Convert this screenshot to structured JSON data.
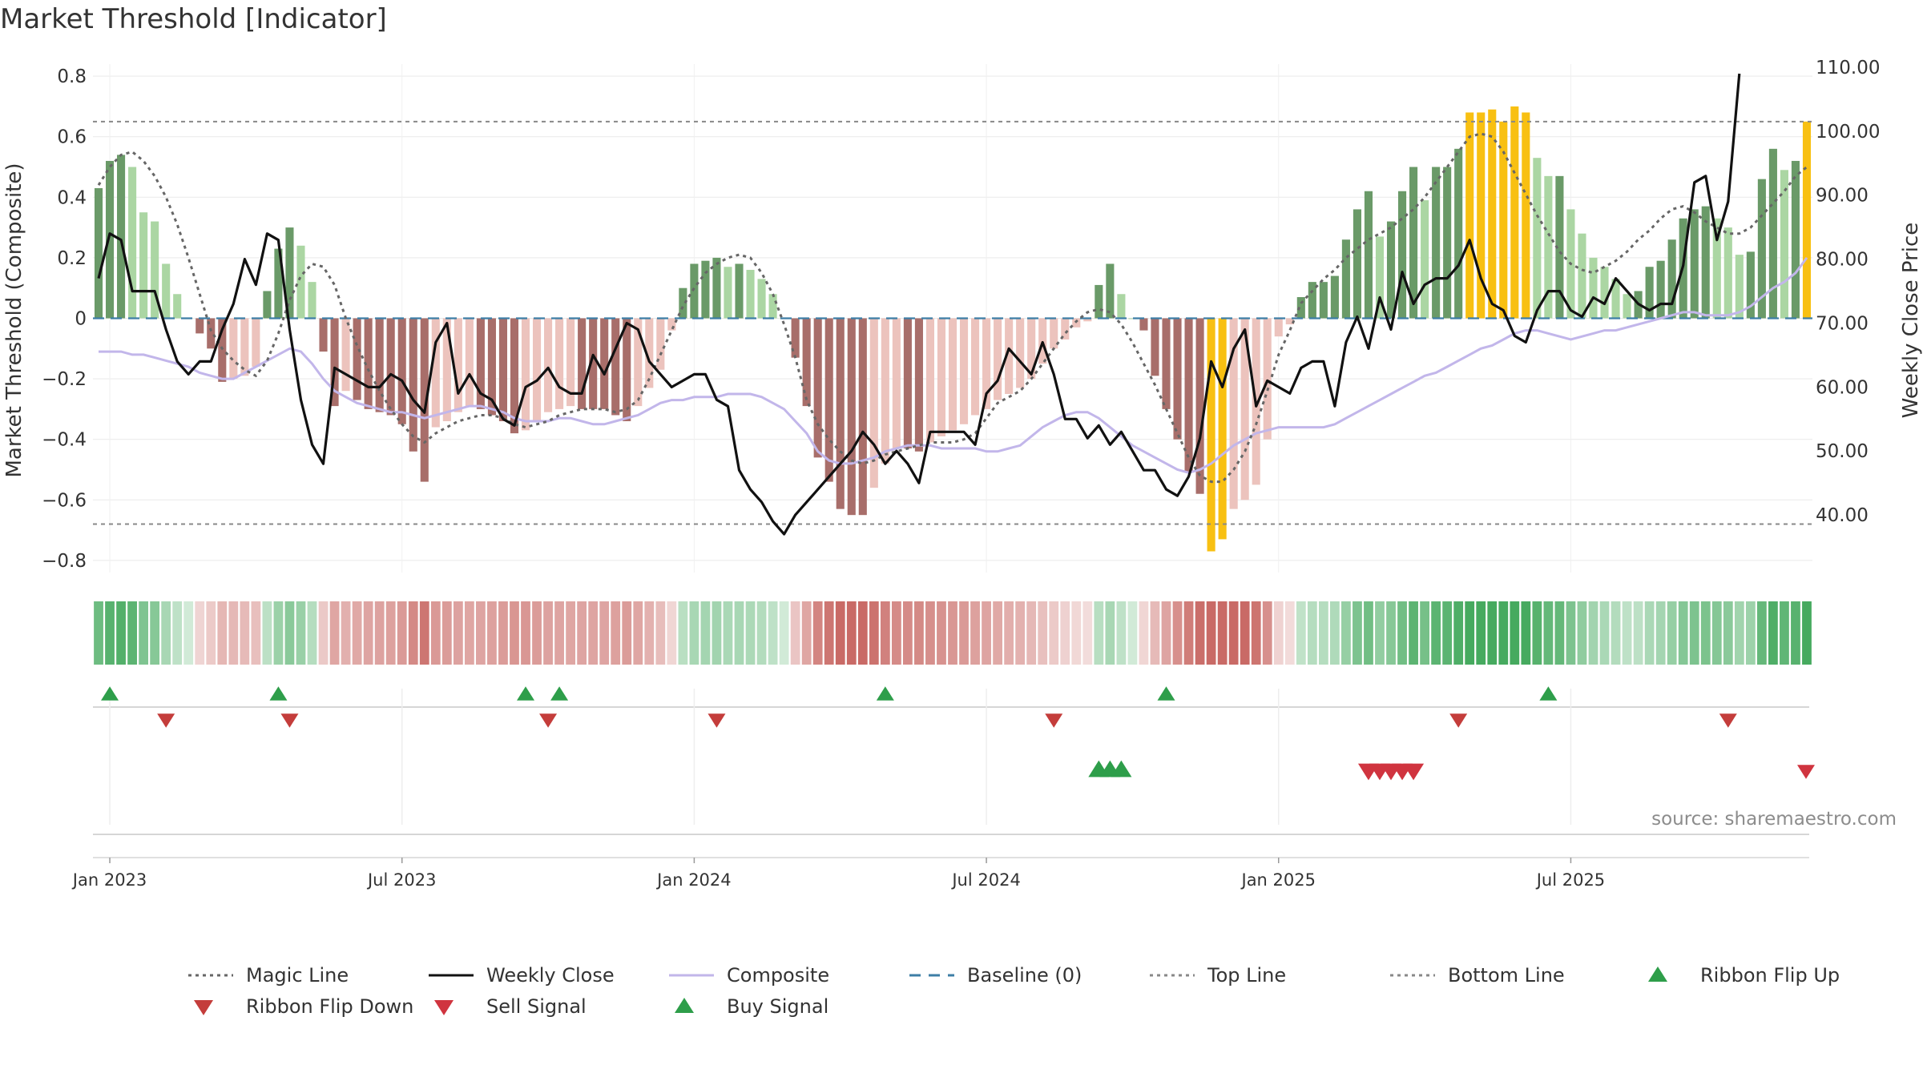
{
  "header": {
    "title": "Market Threshold [Indicator]"
  },
  "source": "source: sharemaestro.com",
  "colors": {
    "magic": "#666666",
    "close": "#111111",
    "composite": "#c2b6ea",
    "baseline": "#3d7ea6",
    "topline": "#888888",
    "bottomline": "#888888",
    "buy": "#2e9e4a",
    "sell": "#d0343f",
    "flipdown": "#c43d3b"
  },
  "chart_data": {
    "type": "bar",
    "title": "Market Threshold [Indicator]",
    "ylabel": "Market Threshold (Composite)",
    "ylabel_right": "Weekly Close Price",
    "ylim": [
      -0.84,
      0.84
    ],
    "ylim_right": [
      31.0,
      110.5
    ],
    "yticks": [
      {
        "v": 0.8,
        "label": "0.8"
      },
      {
        "v": 0.6,
        "label": "0.6"
      },
      {
        "v": 0.4,
        "label": "0.4"
      },
      {
        "v": 0.2,
        "label": "0.2"
      },
      {
        "v": 0,
        "label": "0"
      },
      {
        "v": -0.2,
        "label": "−0.2"
      },
      {
        "v": -0.4,
        "label": "−0.4"
      },
      {
        "v": -0.6,
        "label": "−0.6"
      },
      {
        "v": -0.8,
        "label": "−0.8"
      }
    ],
    "yticks_right": [
      "110.00",
      "100.00",
      "90.00",
      "80.00",
      "70.00",
      "60.00",
      "50.00",
      "40.00"
    ],
    "yticks_right_values": [
      110,
      100,
      90,
      80,
      70,
      60,
      50,
      40
    ],
    "xticks": [
      "Jan 2023",
      "Jul 2023",
      "Jan 2024",
      "Jul 2024",
      "Jan 2025",
      "Jul 2025"
    ],
    "xticks_week_index": [
      1,
      27,
      53,
      79,
      105,
      131
    ],
    "top_line": 0.65,
    "bottom_line": -0.68,
    "baseline": 0,
    "composite": [
      0.43,
      0.52,
      0.54,
      0.5,
      0.35,
      0.32,
      0.18,
      0.08,
      0.0,
      -0.05,
      -0.1,
      -0.21,
      -0.2,
      -0.19,
      -0.16,
      0.09,
      0.23,
      0.3,
      0.24,
      0.12,
      -0.11,
      -0.29,
      -0.24,
      -0.27,
      -0.3,
      -0.31,
      -0.32,
      -0.35,
      -0.44,
      -0.54,
      -0.36,
      -0.34,
      -0.31,
      -0.29,
      -0.3,
      -0.32,
      -0.34,
      -0.38,
      -0.37,
      -0.34,
      -0.31,
      -0.3,
      -0.29,
      -0.3,
      -0.3,
      -0.3,
      -0.32,
      -0.34,
      -0.29,
      -0.23,
      -0.17,
      -0.04,
      0.1,
      0.18,
      0.19,
      0.2,
      0.17,
      0.18,
      0.16,
      0.13,
      0.08,
      0.0,
      -0.13,
      -0.29,
      -0.46,
      -0.54,
      -0.63,
      -0.65,
      -0.65,
      -0.56,
      -0.48,
      -0.43,
      -0.43,
      -0.44,
      -0.41,
      -0.39,
      -0.37,
      -0.35,
      -0.32,
      -0.3,
      -0.27,
      -0.25,
      -0.23,
      -0.2,
      -0.15,
      -0.1,
      -0.07,
      -0.03,
      -0.01,
      0.11,
      0.18,
      0.08,
      0.0,
      -0.04,
      -0.19,
      -0.3,
      -0.4,
      -0.51,
      -0.58,
      -0.77,
      -0.73,
      -0.63,
      -0.6,
      -0.55,
      -0.4,
      -0.06,
      -0.02,
      0.07,
      0.12,
      0.12,
      0.14,
      0.26,
      0.36,
      0.42,
      0.27,
      0.32,
      0.42,
      0.5,
      0.39,
      0.5,
      0.5,
      0.56,
      0.68,
      0.68,
      0.69,
      0.65,
      0.7,
      0.68,
      0.53,
      0.47,
      0.47,
      0.36,
      0.28,
      0.2,
      0.17,
      0.13,
      0.08,
      0.09,
      0.17,
      0.19,
      0.26,
      0.33,
      0.36,
      0.37,
      0.33,
      0.3,
      0.21,
      0.22,
      0.46,
      0.56,
      0.49,
      0.52,
      0.65
    ],
    "magic_line": [
      0.44,
      0.5,
      0.54,
      0.55,
      0.52,
      0.47,
      0.4,
      0.31,
      0.2,
      0.08,
      -0.04,
      -0.1,
      -0.14,
      -0.17,
      -0.19,
      -0.14,
      -0.05,
      0.06,
      0.14,
      0.18,
      0.17,
      0.11,
      0.0,
      -0.09,
      -0.17,
      -0.24,
      -0.3,
      -0.35,
      -0.39,
      -0.41,
      -0.38,
      -0.36,
      -0.34,
      -0.33,
      -0.32,
      -0.32,
      -0.33,
      -0.35,
      -0.36,
      -0.35,
      -0.34,
      -0.32,
      -0.31,
      -0.3,
      -0.3,
      -0.3,
      -0.31,
      -0.3,
      -0.27,
      -0.2,
      -0.12,
      -0.04,
      0.04,
      0.1,
      0.15,
      0.18,
      0.2,
      0.21,
      0.2,
      0.15,
      0.08,
      -0.02,
      -0.13,
      -0.27,
      -0.35,
      -0.4,
      -0.44,
      -0.47,
      -0.48,
      -0.47,
      -0.45,
      -0.44,
      -0.43,
      -0.42,
      -0.41,
      -0.41,
      -0.41,
      -0.4,
      -0.38,
      -0.33,
      -0.28,
      -0.26,
      -0.24,
      -0.2,
      -0.15,
      -0.1,
      -0.05,
      -0.01,
      0.02,
      0.03,
      0.02,
      -0.02,
      -0.08,
      -0.15,
      -0.22,
      -0.3,
      -0.38,
      -0.46,
      -0.52,
      -0.54,
      -0.54,
      -0.5,
      -0.44,
      -0.35,
      -0.24,
      -0.12,
      -0.04,
      0.05,
      0.09,
      0.13,
      0.16,
      0.2,
      0.23,
      0.26,
      0.28,
      0.3,
      0.33,
      0.36,
      0.4,
      0.45,
      0.5,
      0.55,
      0.6,
      0.61,
      0.6,
      0.55,
      0.48,
      0.41,
      0.34,
      0.28,
      0.22,
      0.18,
      0.16,
      0.15,
      0.17,
      0.19,
      0.22,
      0.26,
      0.29,
      0.33,
      0.36,
      0.37,
      0.35,
      0.32,
      0.3,
      0.28,
      0.28,
      0.3,
      0.34,
      0.38,
      0.42,
      0.47,
      0.5
    ],
    "composite_line": [
      -0.11,
      -0.11,
      -0.11,
      -0.12,
      -0.12,
      -0.13,
      -0.14,
      -0.15,
      -0.16,
      -0.18,
      -0.19,
      -0.2,
      -0.2,
      -0.18,
      -0.16,
      -0.14,
      -0.12,
      -0.1,
      -0.11,
      -0.15,
      -0.2,
      -0.24,
      -0.26,
      -0.28,
      -0.29,
      -0.3,
      -0.31,
      -0.31,
      -0.32,
      -0.33,
      -0.32,
      -0.31,
      -0.3,
      -0.29,
      -0.29,
      -0.3,
      -0.31,
      -0.33,
      -0.34,
      -0.34,
      -0.34,
      -0.33,
      -0.33,
      -0.34,
      -0.35,
      -0.35,
      -0.34,
      -0.33,
      -0.32,
      -0.3,
      -0.28,
      -0.27,
      -0.27,
      -0.26,
      -0.26,
      -0.26,
      -0.25,
      -0.25,
      -0.25,
      -0.26,
      -0.28,
      -0.3,
      -0.34,
      -0.38,
      -0.44,
      -0.47,
      -0.48,
      -0.48,
      -0.47,
      -0.46,
      -0.44,
      -0.43,
      -0.42,
      -0.42,
      -0.42,
      -0.43,
      -0.43,
      -0.43,
      -0.43,
      -0.44,
      -0.44,
      -0.43,
      -0.42,
      -0.39,
      -0.36,
      -0.34,
      -0.32,
      -0.31,
      -0.31,
      -0.33,
      -0.36,
      -0.39,
      -0.42,
      -0.44,
      -0.46,
      -0.48,
      -0.5,
      -0.51,
      -0.5,
      -0.48,
      -0.45,
      -0.42,
      -0.4,
      -0.38,
      -0.37,
      -0.36,
      -0.36,
      -0.36,
      -0.36,
      -0.36,
      -0.35,
      -0.33,
      -0.31,
      -0.29,
      -0.27,
      -0.25,
      -0.23,
      -0.21,
      -0.19,
      -0.18,
      -0.16,
      -0.14,
      -0.12,
      -0.1,
      -0.09,
      -0.07,
      -0.05,
      -0.04,
      -0.04,
      -0.05,
      -0.06,
      -0.07,
      -0.06,
      -0.05,
      -0.04,
      -0.04,
      -0.03,
      -0.02,
      -0.01,
      0.0,
      0.01,
      0.02,
      0.02,
      0.01,
      0.01,
      0.01,
      0.02,
      0.04,
      0.07,
      0.1,
      0.12,
      0.15,
      0.2
    ],
    "weekly_close": [
      77,
      84,
      83,
      75,
      75,
      75,
      69,
      64,
      62,
      64,
      64,
      69,
      73,
      80,
      76,
      84,
      83,
      69,
      58,
      51,
      48,
      63,
      62,
      61,
      60,
      60,
      62,
      61,
      58,
      56,
      67,
      70,
      59,
      62,
      59,
      58,
      55,
      54,
      60,
      61,
      63,
      60,
      59,
      59,
      65,
      62,
      66,
      70,
      69,
      64,
      62,
      60,
      61,
      62,
      62,
      58,
      57,
      47,
      44,
      42,
      39,
      37,
      40,
      42,
      44,
      46,
      48,
      50,
      53,
      51,
      48,
      50,
      48,
      45,
      53,
      53,
      53,
      53,
      51,
      59,
      61,
      66,
      64,
      62,
      67,
      62,
      55,
      55,
      52,
      54,
      51,
      53,
      50,
      47,
      47,
      44,
      43,
      46,
      52,
      64,
      60,
      66,
      69,
      57,
      61,
      60,
      59,
      63,
      64,
      64,
      57,
      67,
      71,
      66,
      74,
      69,
      78,
      73,
      76,
      77,
      77,
      79,
      83,
      77,
      73,
      72,
      68,
      67,
      72,
      75,
      75,
      72,
      71,
      74,
      73,
      77,
      75,
      73,
      72,
      73,
      73,
      79,
      92,
      93,
      83,
      89,
      109
    ],
    "ribbon_shades": [
      0.9,
      2,
      0.2,
      0.2,
      0.2,
      0.2,
      1,
      1,
      1,
      1,
      1,
      1,
      1,
      1,
      1,
      1,
      1,
      1,
      1,
      2,
      2,
      1,
      1,
      1,
      1,
      1,
      1,
      1,
      1,
      1,
      1,
      1,
      1,
      1,
      1,
      1,
      1,
      1,
      1,
      1,
      1,
      1,
      1,
      1,
      1,
      1,
      1,
      1,
      1,
      1,
      1,
      1,
      1,
      1,
      1,
      1,
      1,
      1,
      1,
      1,
      1,
      1,
      1,
      1,
      1,
      1,
      1,
      1,
      1,
      1,
      1,
      1,
      1,
      1,
      1,
      1,
      1,
      1,
      1,
      1,
      1,
      1,
      1,
      1,
      1,
      1,
      1,
      1,
      1,
      1,
      1,
      1,
      1,
      1,
      1,
      1,
      1,
      1,
      1,
      1,
      1,
      1,
      1,
      1,
      1,
      1,
      1,
      1,
      1,
      1,
      1,
      1,
      1,
      1,
      1,
      1,
      1,
      1,
      1,
      1,
      1,
      1,
      1,
      1,
      1,
      1,
      1,
      1,
      1,
      1,
      1,
      1,
      1,
      1,
      1,
      1,
      1,
      1,
      1,
      1,
      1,
      1,
      1,
      1,
      1,
      1,
      1,
      1,
      1,
      1
    ],
    "buy_signal_weeks": [
      1,
      16,
      38,
      41,
      70,
      95,
      129
    ],
    "sell_signal_weeks": [
      6,
      17,
      40,
      55,
      85,
      121,
      145
    ],
    "ribbon_flip_up_weeks": [
      89,
      90,
      91
    ],
    "ribbon_flip_down_weeks": [
      113,
      114,
      115,
      116,
      117
    ],
    "legend": [
      {
        "label": "Magic Line",
        "style": "dotted-line",
        "color": "#666666"
      },
      {
        "label": "Weekly Close",
        "style": "line",
        "color": "#111111"
      },
      {
        "label": "Composite",
        "style": "line",
        "color": "#c2b6ea"
      },
      {
        "label": "Baseline (0)",
        "style": "dashed-line",
        "color": "#3d7ea6"
      },
      {
        "label": "Top Line",
        "style": "dotted-line",
        "color": "#888888"
      },
      {
        "label": "Bottom Line",
        "style": "dotted-line",
        "color": "#888888"
      },
      {
        "label": "Ribbon Flip Up",
        "style": "triangle-up",
        "color": "#2e9e4a"
      },
      {
        "label": "Ribbon Flip Down",
        "style": "triangle-down",
        "color": "#c43d3b"
      },
      {
        "label": "Sell Signal",
        "style": "triangle-down",
        "color": "#d0343f"
      },
      {
        "label": "Buy Signal",
        "style": "triangle-up",
        "color": "#2e9e4a"
      }
    ]
  }
}
